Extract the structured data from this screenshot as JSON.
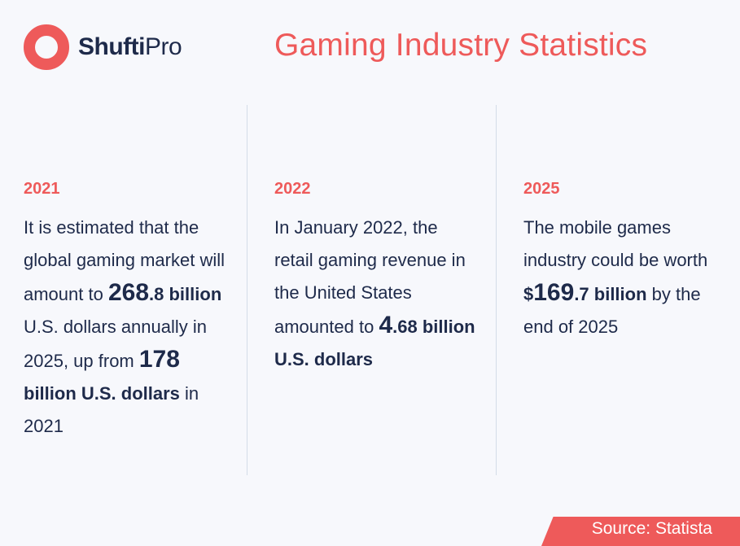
{
  "logo": {
    "brand_bold": "Shufti",
    "brand_regular": "Pro",
    "mark_icon": "ring-logo-icon",
    "accent_color": "#ee5a5a"
  },
  "header": {
    "title": "Gaming Industry Statistics",
    "title_color": "#ee5a5a"
  },
  "stats": [
    {
      "year": "2021",
      "segments": [
        "It is estimated that the global gaming market will amount to ",
        "268",
        ".8",
        " billion",
        " U.S. dollars annually in 2025, up from ",
        "178",
        " billion U.S. dollars",
        " in 2021"
      ]
    },
    {
      "year": "2022",
      "segments": [
        "In January 2022, the retail gaming revenue in the United States amounted to ",
        "4",
        ".68",
        " billion U.S. dollars"
      ]
    },
    {
      "year": "2025",
      "segments": [
        "The mobile games industry could be worth ",
        "$",
        "169",
        ".7 billion",
        " by the end of 2025"
      ]
    }
  ],
  "source": {
    "label": "Source: Statista",
    "background_color": "#ee5a5a"
  },
  "colors": {
    "background": "#f7f8fc",
    "text": "#1e2a4a",
    "divider": "#d3dce8"
  }
}
